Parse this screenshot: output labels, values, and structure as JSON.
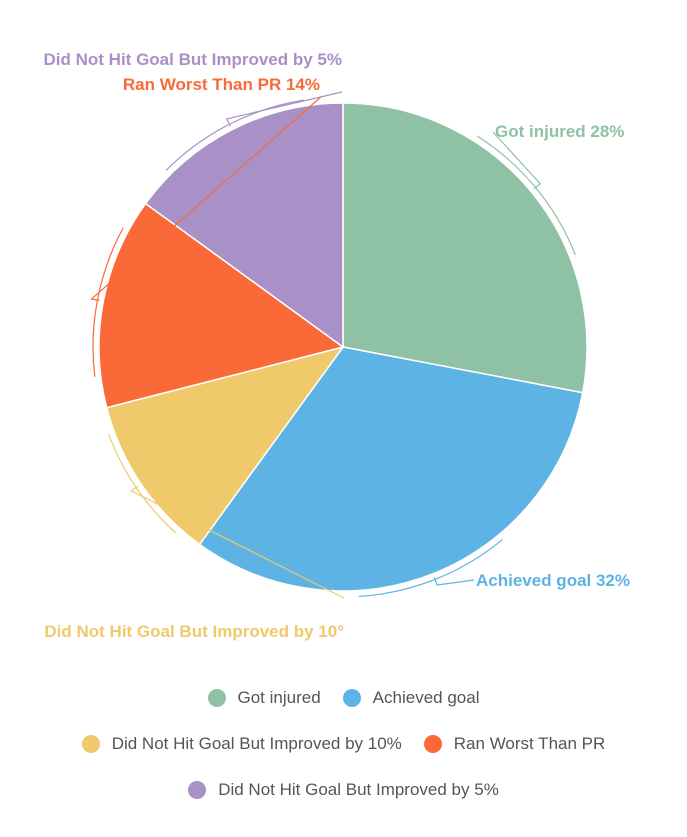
{
  "chart_data": {
    "type": "pie",
    "title": "",
    "start_angle_deg": 0,
    "direction": "clockwise",
    "slices": [
      {
        "label": "Got injured",
        "value": 28,
        "data_label": "Got injured 28%",
        "color": "#8fc1a5"
      },
      {
        "label": "Achieved goal",
        "value": 32,
        "data_label": "Achieved goal 32%",
        "color": "#5db3e3"
      },
      {
        "label": "Did Not Hit Goal But Improved by 10%",
        "value": 11,
        "data_label": "Did Not Hit Goal But Improved by 10°",
        "color": "#f0c96a"
      },
      {
        "label": "Ran Worst Than PR",
        "value": 14,
        "data_label": "Ran Worst Than PR 14%",
        "color": "#f96a38"
      },
      {
        "label": "Did Not Hit Goal But Improved by 5%",
        "value": 15,
        "data_label": "Did Not Hit Goal But Improved by 5%",
        "color": "#a990c6"
      }
    ],
    "legend": {
      "position": "bottom",
      "rows": [
        [
          0,
          1
        ],
        [
          2,
          3
        ],
        [
          4
        ]
      ]
    }
  }
}
